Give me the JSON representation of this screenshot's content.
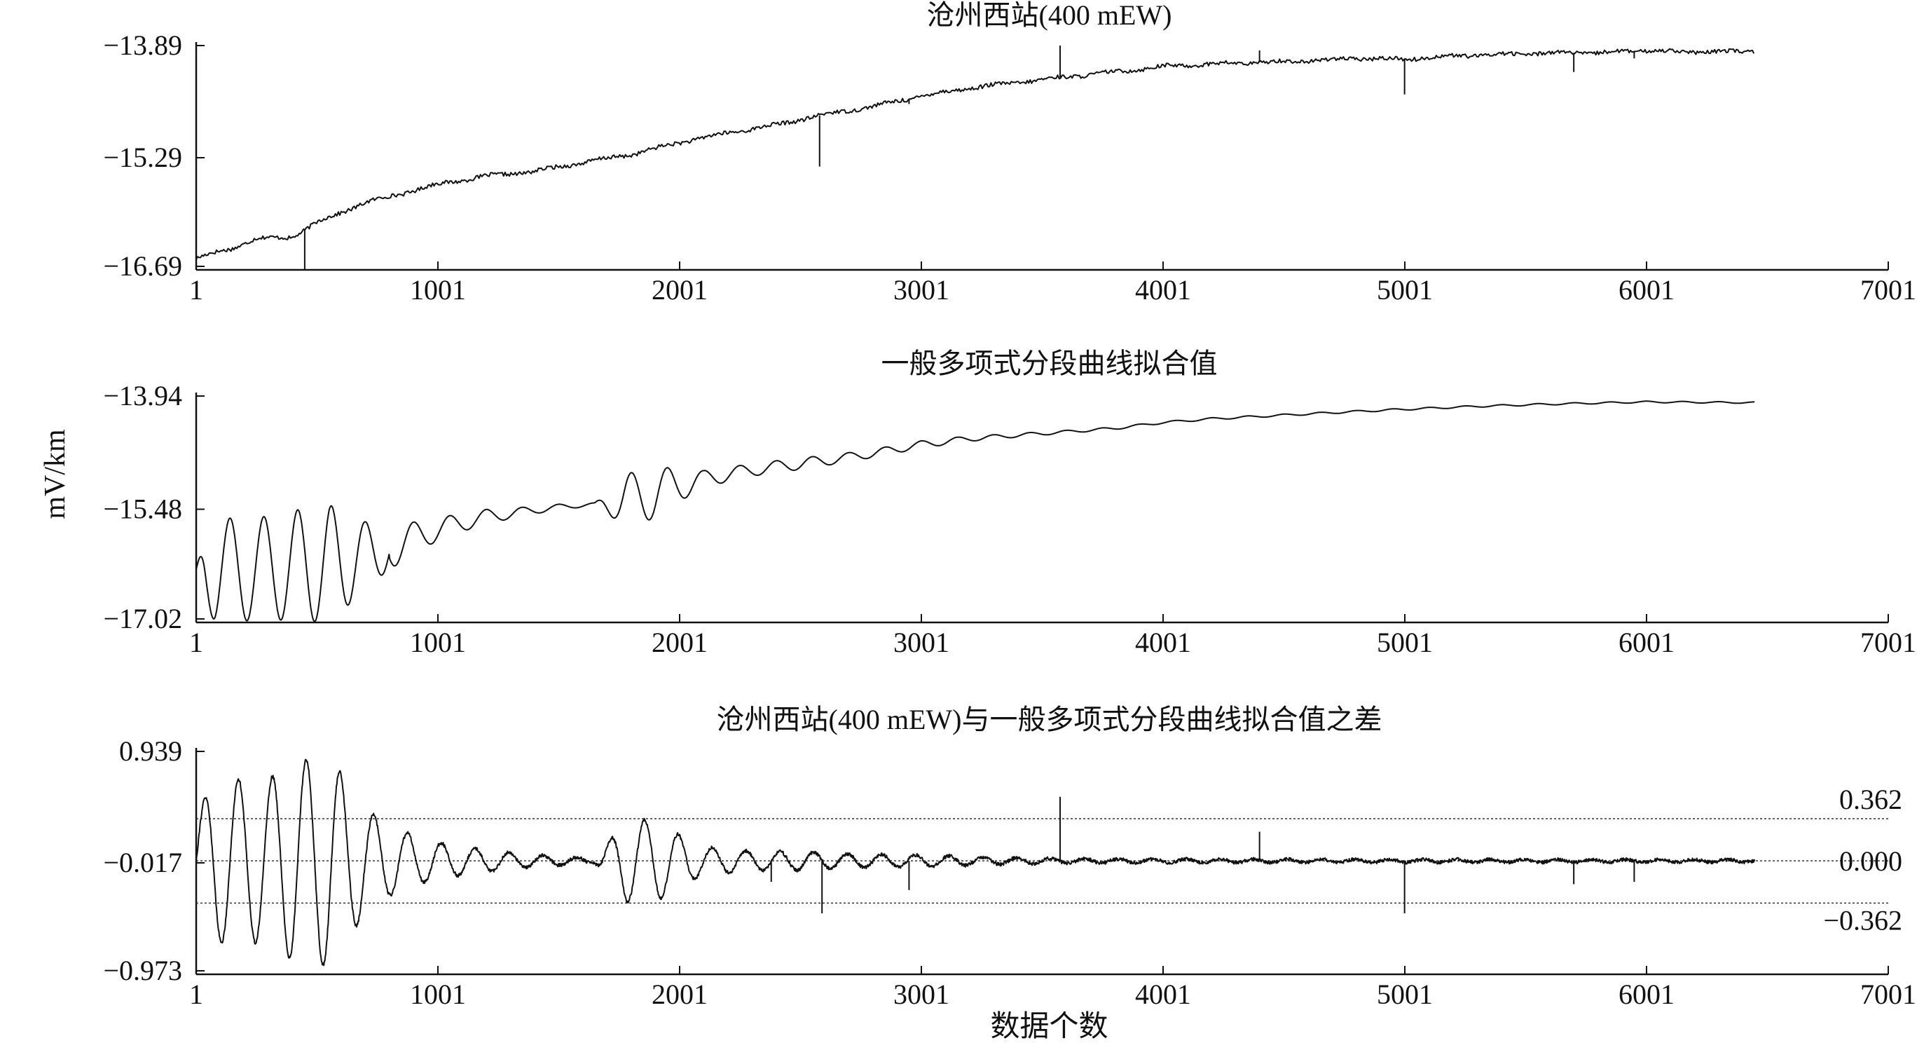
{
  "chart_data": [
    {
      "type": "line",
      "title": "沧州西站(400 mEW)",
      "xlim": [
        1,
        7001
      ],
      "x_ticks": [
        "1",
        "1001",
        "2001",
        "3001",
        "4001",
        "5001",
        "6001",
        "7001"
      ],
      "ylim": [
        -16.69,
        -13.89
      ],
      "y_ticks": [
        "−13.89",
        "−15.29",
        "−16.69"
      ],
      "series": [
        {
          "x": [
            1,
            50,
            150,
            250,
            400,
            500,
            700,
            900,
            1000,
            1200,
            1400,
            1600,
            1800,
            2000,
            2200,
            2400,
            2600,
            2800,
            3000,
            3200,
            3400,
            3600,
            3800,
            4000,
            4200,
            4400,
            4600,
            4800,
            5000,
            5200,
            5400,
            5600,
            5800,
            6000,
            6200,
            6450
          ],
          "y": [
            -16.55,
            -16.5,
            -16.42,
            -16.3,
            -16.28,
            -16.1,
            -15.85,
            -15.7,
            -15.62,
            -15.52,
            -15.46,
            -15.35,
            -15.25,
            -15.1,
            -14.98,
            -14.88,
            -14.75,
            -14.65,
            -14.52,
            -14.42,
            -14.35,
            -14.28,
            -14.22,
            -14.15,
            -14.12,
            -14.1,
            -14.08,
            -14.05,
            -14.06,
            -14.02,
            -14.0,
            -13.98,
            -13.98,
            -13.95,
            -13.97,
            -13.96
          ],
          "spikes": [
            [
              450,
              -16.69
            ],
            [
              3575,
              -13.89
            ],
            [
              2580,
              -15.4
            ],
            [
              5000,
              -14.5
            ],
            [
              4400,
              -13.95
            ],
            [
              2950,
              -14.62
            ],
            [
              5700,
              -14.22
            ],
            [
              5950,
              -14.05
            ]
          ]
        }
      ]
    },
    {
      "type": "line",
      "title": "一般多项式分段曲线拟合值",
      "xlim": [
        1,
        7001
      ],
      "x_ticks": [
        "1",
        "1001",
        "2001",
        "3001",
        "4001",
        "5001",
        "6001",
        "7001"
      ],
      "ylim": [
        -17.02,
        -13.94
      ],
      "y_ticks": [
        "−13.94",
        "−15.48",
        "−17.02"
      ],
      "ylabel": "mV/km",
      "series": [
        {
          "x": [
            1,
            200,
            400,
            600,
            800,
            1000,
            1200,
            1500,
            1700,
            1850,
            2000,
            2200,
            2400,
            2600,
            2800,
            3000,
            3200,
            3500,
            3800,
            4000,
            4200,
            4500,
            4800,
            5000,
            5300,
            5600,
            6000,
            6450
          ],
          "y": [
            -16.3,
            -16.3,
            -16.25,
            -16.2,
            -16.0,
            -15.75,
            -15.58,
            -15.45,
            -15.4,
            -15.3,
            -15.15,
            -15.0,
            -14.9,
            -14.82,
            -14.72,
            -14.6,
            -14.52,
            -14.45,
            -14.38,
            -14.3,
            -14.25,
            -14.2,
            -14.15,
            -14.12,
            -14.08,
            -14.05,
            -14.02,
            -14.03
          ],
          "oscillation": [
            [
              1,
              0
            ],
            [
              40,
              0.55
            ],
            [
              80,
              0.7
            ],
            [
              200,
              0.7
            ],
            [
              300,
              0.7
            ],
            [
              400,
              0.75
            ],
            [
              550,
              0.8
            ],
            [
              700,
              0.45
            ],
            [
              800,
              0.3
            ],
            [
              950,
              0.18
            ],
            [
              1100,
              0.12
            ],
            [
              1400,
              0.05
            ],
            [
              1650,
              0.02
            ],
            [
              1780,
              0.35
            ],
            [
              1900,
              0.35
            ],
            [
              2000,
              0.22
            ],
            [
              2100,
              0.12
            ],
            [
              2300,
              0.08
            ],
            [
              2500,
              0.08
            ],
            [
              2700,
              0.06
            ],
            [
              3000,
              0.05
            ],
            [
              3300,
              0.03
            ],
            [
              3600,
              0.02
            ],
            [
              4000,
              0.015
            ],
            [
              6450,
              0.01
            ]
          ]
        }
      ]
    },
    {
      "type": "line",
      "title": "沧州西站(400 mEW)与一般多项式分段曲线拟合值之差",
      "xlim": [
        1,
        7001
      ],
      "x_ticks": [
        "1",
        "1001",
        "2001",
        "3001",
        "4001",
        "5001",
        "6001",
        "7001"
      ],
      "xlabel": "数据个数",
      "ylim": [
        -0.973,
        0.939
      ],
      "y_ticks": [
        "0.939",
        "−0.017",
        "−0.973"
      ],
      "reference_lines": [
        {
          "value": 0.362,
          "label": "0.362"
        },
        {
          "value": 0.0,
          "label": "0.000"
        },
        {
          "value": -0.362,
          "label": "−0.362"
        }
      ],
      "series": [
        {
          "envelope": [
            [
              1,
              0.4
            ],
            [
              40,
              0.55
            ],
            [
              80,
              0.7
            ],
            [
              200,
              0.7
            ],
            [
              300,
              0.7
            ],
            [
              400,
              0.85
            ],
            [
              550,
              0.9
            ],
            [
              700,
              0.45
            ],
            [
              800,
              0.3
            ],
            [
              950,
              0.18
            ],
            [
              1100,
              0.12
            ],
            [
              1400,
              0.05
            ],
            [
              1650,
              0.02
            ],
            [
              1780,
              0.35
            ],
            [
              1900,
              0.35
            ],
            [
              2000,
              0.22
            ],
            [
              2100,
              0.12
            ],
            [
              2300,
              0.08
            ],
            [
              2500,
              0.08
            ],
            [
              2700,
              0.06
            ],
            [
              3000,
              0.05
            ],
            [
              3300,
              0.03
            ],
            [
              3600,
              0.02
            ],
            [
              4000,
              0.015
            ],
            [
              6450,
              0.01
            ]
          ],
          "spikes": [
            [
              3575,
              0.55
            ],
            [
              2590,
              -0.45
            ],
            [
              5000,
              -0.45
            ],
            [
              4400,
              0.25
            ],
            [
              2950,
              -0.25
            ],
            [
              5700,
              -0.2
            ],
            [
              5950,
              -0.18
            ],
            [
              2380,
              -0.18
            ]
          ]
        }
      ]
    }
  ]
}
